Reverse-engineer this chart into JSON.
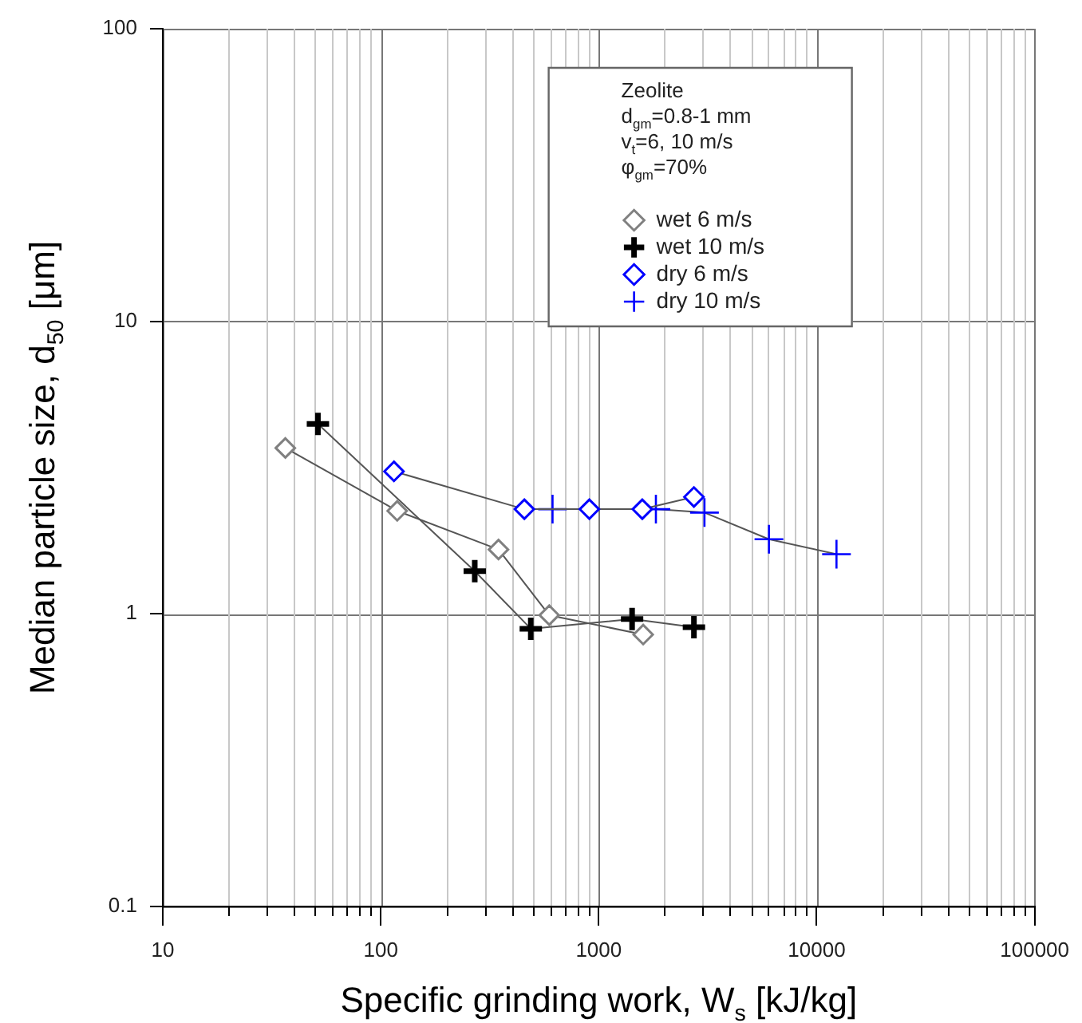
{
  "chart_data": {
    "type": "line",
    "xlabel": "Specific grinding work, W$_{s}$ [kJ/kg]",
    "ylabel": "Median particle size, d$_{50}$ [μm]",
    "log": "xy",
    "xlim": [
      10,
      100000
    ],
    "xticks": [
      10,
      100,
      1000,
      10000,
      100000
    ],
    "ylim": [
      0.1,
      100
    ],
    "yticks": [
      0.1,
      1,
      10,
      100
    ],
    "grid": true,
    "legend": "top right",
    "annotations": [
      "Zeolite",
      "d$_{gm}$=0.8-1 mm",
      "v$_{t}$=6, 10 m/s",
      "φ$_{gm}$=70%"
    ],
    "series": [
      {
        "name": "wet 6 m/s",
        "color": "#808080",
        "marker": "diamond",
        "x": [
          36.5,
          119,
          347,
          593,
          1600
        ],
        "values": [
          3.69,
          2.25,
          1.66,
          0.99,
          0.85
        ]
      },
      {
        "name": "wet 10 m/s",
        "color": "#000000",
        "marker": "cross",
        "x": [
          51.5,
          270,
          488,
          1423,
          2735
        ],
        "values": [
          4.46,
          1.4,
          0.89,
          0.96,
          0.9
        ]
      },
      {
        "name": "dry 6 m/s",
        "color": "#0000ff",
        "marker": "diamond",
        "x": [
          115,
          456,
          906,
          1585,
          2735
        ],
        "values": [
          3.07,
          2.28,
          2.28,
          2.28,
          2.51
        ]
      },
      {
        "name": "dry 10 m/s",
        "color": "#0000ff",
        "marker": "cross",
        "x": [
          614,
          1830,
          3057,
          6040,
          12330
        ],
        "values": [
          2.28,
          2.28,
          2.22,
          1.8,
          1.6
        ]
      }
    ]
  }
}
